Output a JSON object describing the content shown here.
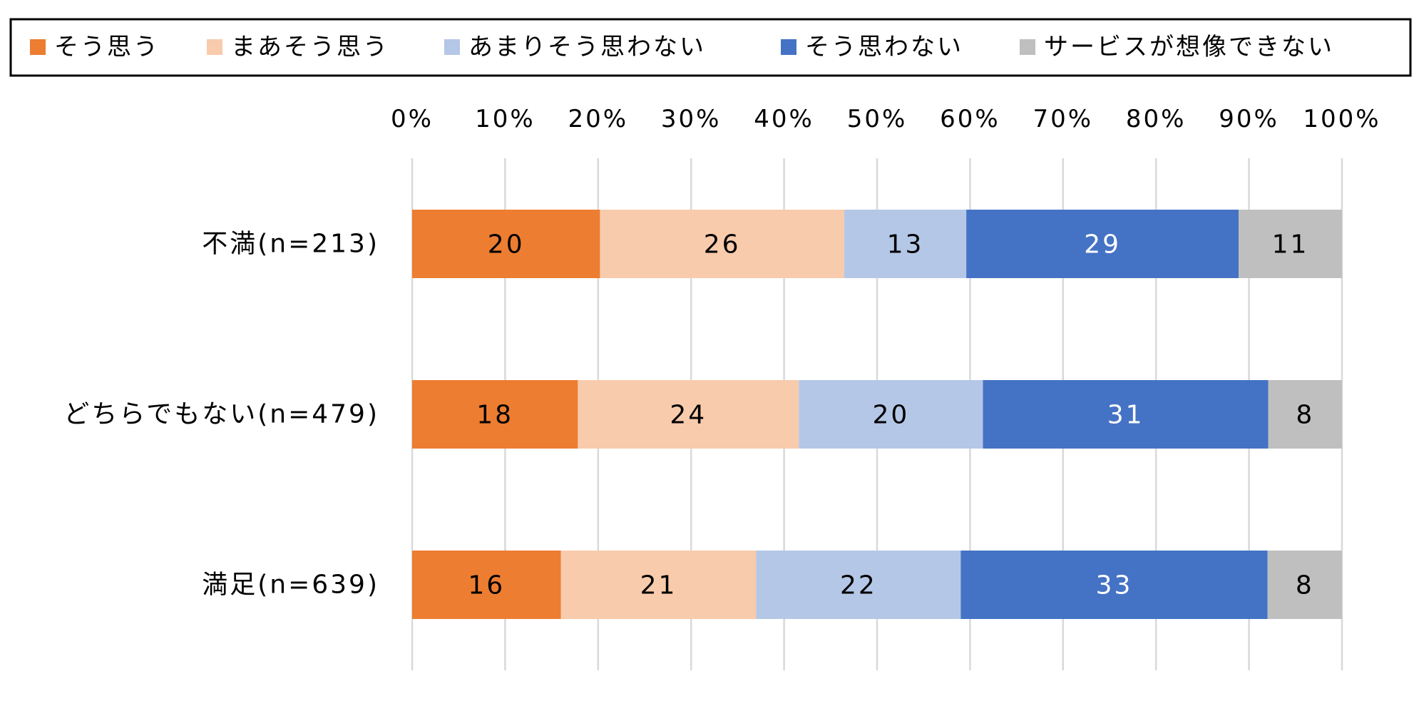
{
  "chart_data": {
    "type": "bar",
    "orientation": "horizontal",
    "stacked": true,
    "percent_stacked": true,
    "title": "",
    "xlabel": "",
    "ylabel": "",
    "xlim": [
      0,
      100
    ],
    "x_ticks": [
      "0%",
      "10%",
      "20%",
      "30%",
      "40%",
      "50%",
      "60%",
      "70%",
      "80%",
      "90%",
      "100%"
    ],
    "grid": "vertical",
    "legend_position": "top",
    "categories": [
      "不満(n=213)",
      "どちらでもない(n=479)",
      "満足(n=639)"
    ],
    "series": [
      {
        "name": "そう思う",
        "color": "#ED7D31",
        "label_color": "#000000",
        "values": [
          20,
          18,
          16
        ]
      },
      {
        "name": "まあそう思う",
        "color": "#F8CBAD",
        "label_color": "#000000",
        "values": [
          26,
          24,
          21
        ]
      },
      {
        "name": "あまりそう思わない",
        "color": "#B4C7E7",
        "label_color": "#000000",
        "values": [
          13,
          20,
          22
        ]
      },
      {
        "name": "そう思わない",
        "color": "#4472C4",
        "label_color": "#FFFFFF",
        "values": [
          29,
          31,
          33
        ]
      },
      {
        "name": "サービスが想像できない",
        "color": "#BFBFBF",
        "label_color": "#000000",
        "values": [
          11,
          8,
          8
        ]
      }
    ]
  }
}
